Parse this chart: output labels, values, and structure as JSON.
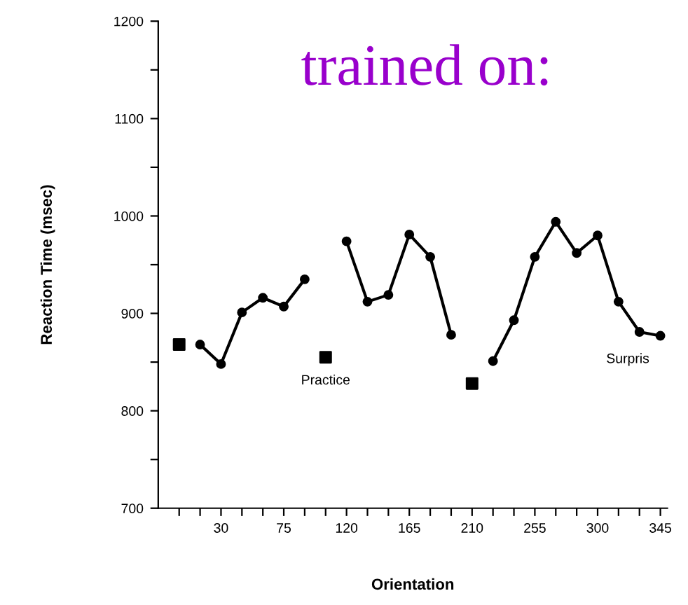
{
  "chart_data": {
    "type": "line",
    "title": "trained on:",
    "xlabel": "Orientation",
    "ylabel": "Reaction Time (msec)",
    "series": [
      {
        "color": "#000000",
        "marker": "circle",
        "x": [
          15,
          30,
          45,
          60,
          75,
          90,
          105,
          120,
          135,
          150,
          165,
          180,
          195,
          210,
          225,
          240,
          255,
          270,
          285,
          300,
          315,
          330,
          345
        ],
        "values": [
          868,
          848,
          901,
          916,
          907,
          935,
          null,
          974,
          912,
          919,
          981,
          958,
          878,
          null,
          851,
          893,
          958,
          994,
          962,
          980,
          912,
          881,
          877
        ]
      },
      {
        "type": "scatter",
        "color": "#000000",
        "marker": "square",
        "x": [
          0,
          105,
          210
        ],
        "values": [
          868,
          855,
          828
        ]
      }
    ],
    "annotations": [
      {
        "text": "Practice",
        "x": 105,
        "y": 855
      },
      {
        "text": "Surpris",
        "x": 330,
        "y": 877
      }
    ],
    "xlim": [
      -15,
      350
    ],
    "ylim": [
      700,
      1200
    ],
    "xticks": [
      {
        "value": 0,
        "label": null
      },
      {
        "value": 15,
        "label": null
      },
      30,
      {
        "value": 45,
        "label": null
      },
      {
        "value": 60,
        "label": null
      },
      75,
      {
        "value": 90,
        "label": null
      },
      {
        "value": 105,
        "label": null
      },
      120,
      {
        "value": 135,
        "label": null
      },
      {
        "value": 150,
        "label": null
      },
      165,
      {
        "value": 180,
        "label": null
      },
      {
        "value": 195,
        "label": null
      },
      210,
      {
        "value": 225,
        "label": null
      },
      {
        "value": 240,
        "label": null
      },
      255,
      {
        "value": 270,
        "label": null
      },
      {
        "value": 285,
        "label": null
      },
      300,
      {
        "value": 315,
        "label": null
      },
      {
        "value": 330,
        "label": null
      },
      345
    ],
    "yticks": [
      700,
      {
        "value": 750,
        "label": null
      },
      800,
      {
        "value": 850,
        "label": null
      },
      900,
      {
        "value": 950,
        "label": null
      },
      1000,
      {
        "value": 1050,
        "label": null
      },
      1100,
      {
        "value": 1150,
        "label": null
      },
      1200
    ],
    "grid": false,
    "legend": false
  }
}
